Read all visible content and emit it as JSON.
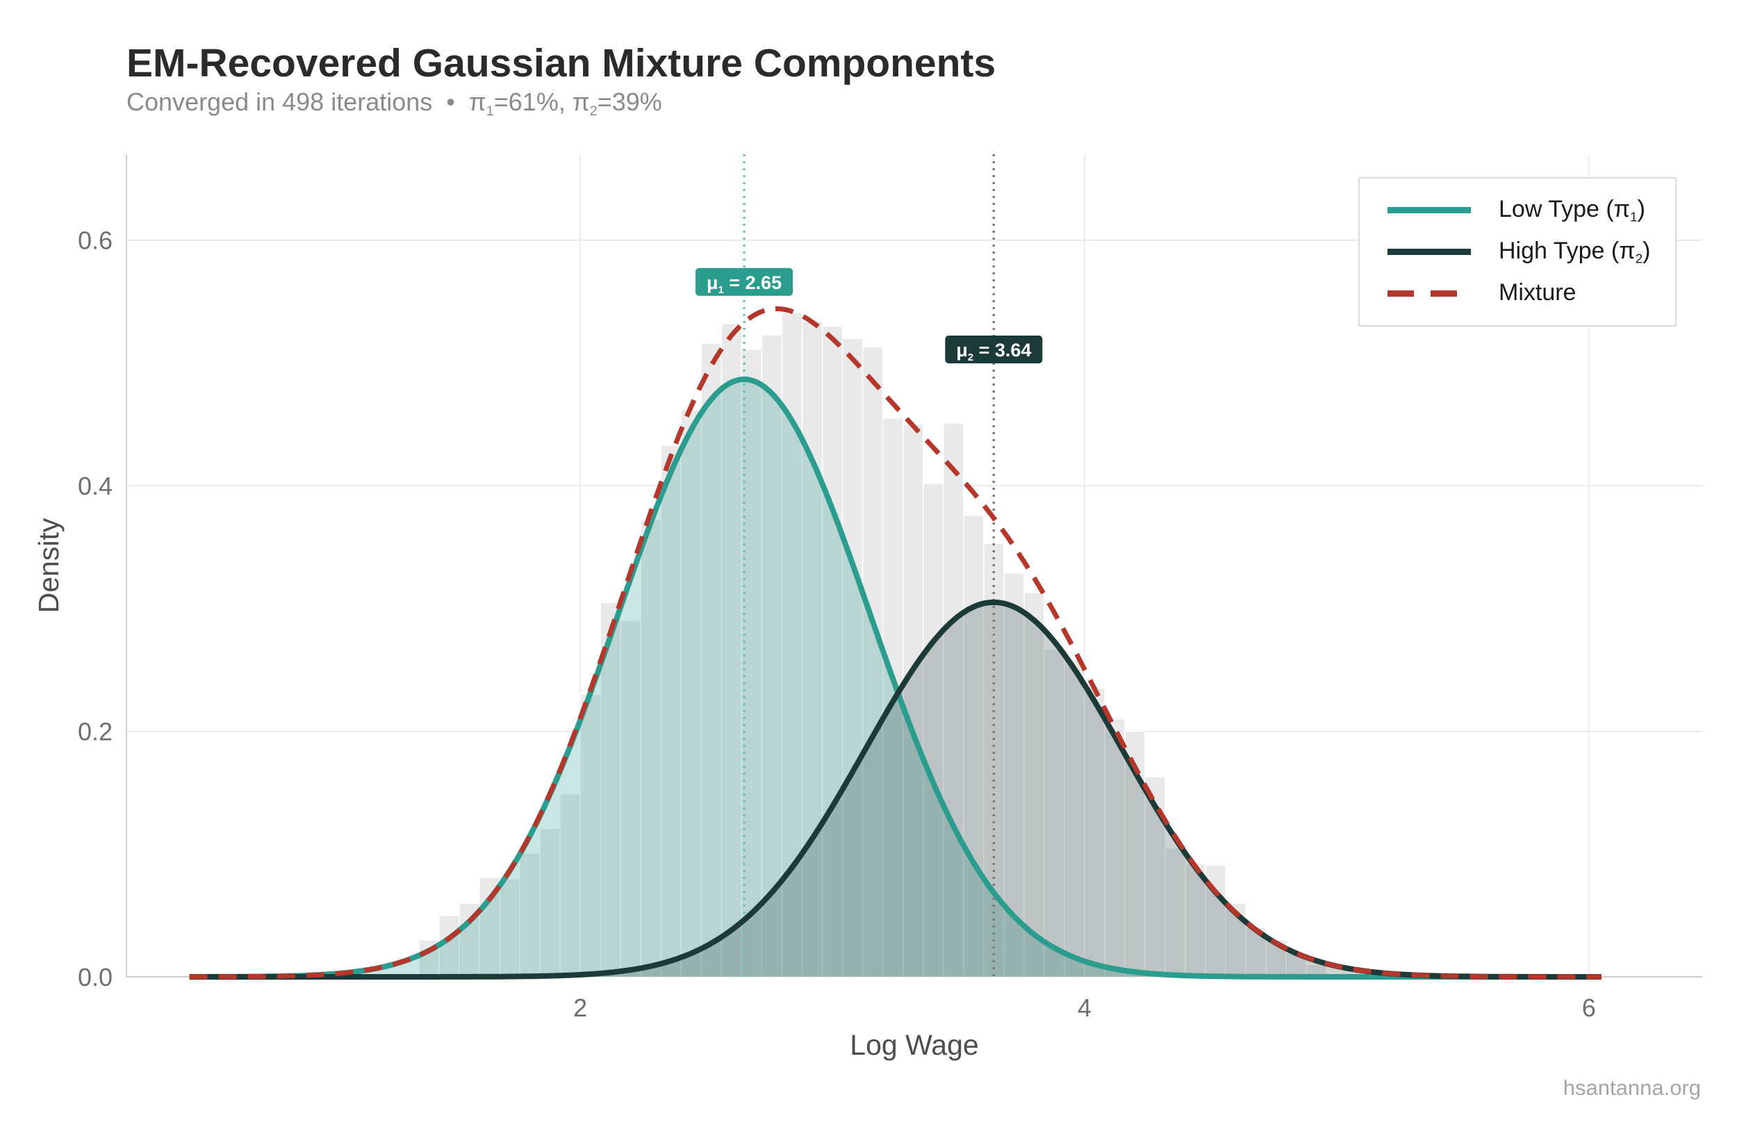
{
  "header": {
    "title": "EM-Recovered Gaussian Mixture Components",
    "subtitle_text": "Converged in 498 iterations",
    "subtitle_sep": "•",
    "pi1_text": "=61%,",
    "pi2_text": "=39%"
  },
  "caption": "hsantanna.org",
  "colors": {
    "low": "#2a9d8f",
    "high": "#1c3a37",
    "mixture": "#b5362b",
    "histogram": "#e9e9e9",
    "grid": "#ececec"
  },
  "chart_data": {
    "type": "area",
    "title": "EM-Recovered Gaussian Mixture Components",
    "subtitle": "Converged in 498 iterations • π1=61%, π2=39%",
    "xlabel": "Log Wage",
    "ylabel": "Density",
    "xlim": [
      0.2,
      6.45
    ],
    "ylim": [
      0,
      0.67
    ],
    "xticks": [
      2,
      4,
      6
    ],
    "yticks": [
      0.0,
      0.2,
      0.4,
      0.6
    ],
    "ytick_labels": [
      "0.0",
      "0.2",
      "0.4",
      "0.6"
    ],
    "grid": true,
    "legend_position": "top-right",
    "legend": [
      {
        "label": "Low Type (π",
        "sub": "1",
        "suffix": ")",
        "style": "solid",
        "color": "#2a9d8f"
      },
      {
        "label": "High Type (π",
        "sub": "2",
        "suffix": ")",
        "style": "solid",
        "color": "#1c3a37"
      },
      {
        "label": "Mixture",
        "sub": "",
        "suffix": "",
        "style": "dashed",
        "color": "#b5362b"
      }
    ],
    "components": [
      {
        "name": "Low Type",
        "weight": 0.61,
        "mean": 2.65,
        "sd": 0.5
      },
      {
        "name": "High Type",
        "weight": 0.39,
        "mean": 3.64,
        "sd": 0.51
      }
    ],
    "curve_range": [
      0.45,
      6.05
    ],
    "histogram": {
      "bin_width": 0.08,
      "bins": [
        {
          "x": 1.4,
          "y": 0.03
        },
        {
          "x": 1.48,
          "y": 0.05
        },
        {
          "x": 1.56,
          "y": 0.06
        },
        {
          "x": 1.64,
          "y": 0.081
        },
        {
          "x": 1.72,
          "y": 0.08
        },
        {
          "x": 1.8,
          "y": 0.101
        },
        {
          "x": 1.88,
          "y": 0.121
        },
        {
          "x": 1.96,
          "y": 0.149
        },
        {
          "x": 2.04,
          "y": 0.23
        },
        {
          "x": 2.12,
          "y": 0.305
        },
        {
          "x": 2.2,
          "y": 0.29
        },
        {
          "x": 2.28,
          "y": 0.372
        },
        {
          "x": 2.36,
          "y": 0.433
        },
        {
          "x": 2.44,
          "y": 0.462
        },
        {
          "x": 2.52,
          "y": 0.516
        },
        {
          "x": 2.6,
          "y": 0.532
        },
        {
          "x": 2.68,
          "y": 0.511
        },
        {
          "x": 2.76,
          "y": 0.523
        },
        {
          "x": 2.84,
          "y": 0.541
        },
        {
          "x": 2.92,
          "y": 0.534
        },
        {
          "x": 3.0,
          "y": 0.53
        },
        {
          "x": 3.08,
          "y": 0.52
        },
        {
          "x": 3.16,
          "y": 0.513
        },
        {
          "x": 3.24,
          "y": 0.455
        },
        {
          "x": 3.32,
          "y": 0.45
        },
        {
          "x": 3.4,
          "y": 0.402
        },
        {
          "x": 3.48,
          "y": 0.451
        },
        {
          "x": 3.56,
          "y": 0.376
        },
        {
          "x": 3.64,
          "y": 0.353
        },
        {
          "x": 3.72,
          "y": 0.329
        },
        {
          "x": 3.8,
          "y": 0.313
        },
        {
          "x": 3.88,
          "y": 0.267
        },
        {
          "x": 3.96,
          "y": 0.258
        },
        {
          "x": 4.04,
          "y": 0.235
        },
        {
          "x": 4.12,
          "y": 0.21
        },
        {
          "x": 4.2,
          "y": 0.2
        },
        {
          "x": 4.28,
          "y": 0.163
        },
        {
          "x": 4.36,
          "y": 0.105
        },
        {
          "x": 4.44,
          "y": 0.092
        },
        {
          "x": 4.52,
          "y": 0.091
        },
        {
          "x": 4.6,
          "y": 0.06
        },
        {
          "x": 4.68,
          "y": 0.04
        },
        {
          "x": 4.76,
          "y": 0.03
        },
        {
          "x": 4.84,
          "y": 0.019
        },
        {
          "x": 4.92,
          "y": 0.01
        }
      ]
    },
    "annotations": [
      {
        "text_pre": "μ",
        "sub": "1",
        "text_post": " = 2.65",
        "x": 2.65,
        "y": 0.566,
        "color": "#2a9d8f"
      },
      {
        "text_pre": "μ",
        "sub": "2",
        "text_post": " = 3.64",
        "x": 3.64,
        "y": 0.511,
        "color": "#1c3a37"
      }
    ]
  }
}
